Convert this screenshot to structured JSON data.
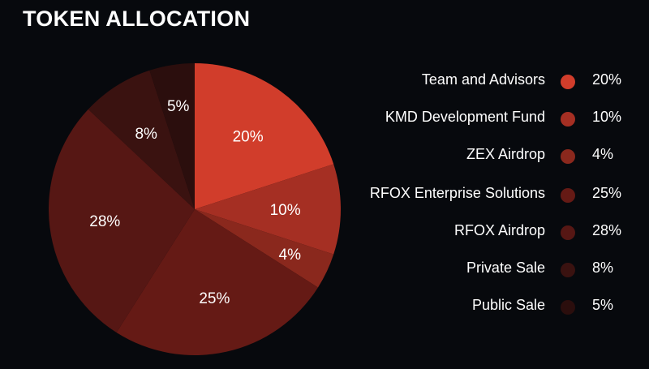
{
  "title": "TOKEN ALLOCATION",
  "chart_data": {
    "type": "pie",
    "title": "TOKEN ALLOCATION",
    "categories": [
      "Team and Advisors",
      "KMD Development Fund",
      "ZEX Airdrop",
      "RFOX Enterprise Solutions",
      "RFOX Airdrop",
      "Private Sale",
      "Public Sale"
    ],
    "values": [
      20,
      10,
      4,
      25,
      28,
      8,
      5
    ],
    "labels": [
      "20%",
      "10%",
      "4%",
      "25%",
      "28%",
      "8%",
      "5%"
    ],
    "colors": [
      "#d13d2b",
      "#a52f23",
      "#8a281d",
      "#651a15",
      "#561714",
      "#3a1210",
      "#2b0e0d"
    ],
    "legend_position": "right"
  }
}
